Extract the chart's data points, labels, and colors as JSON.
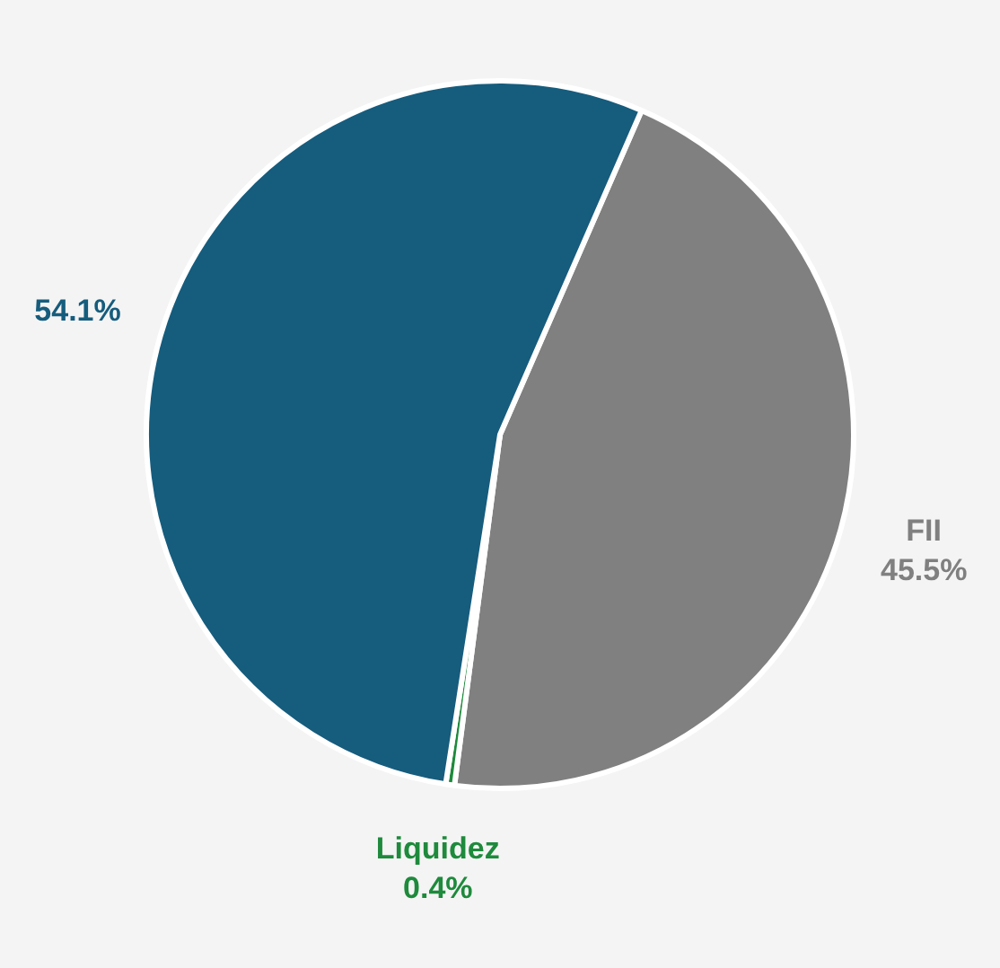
{
  "chart_data": {
    "type": "pie",
    "categories": [
      "FII",
      "Liquidez",
      null
    ],
    "values": [
      45.5,
      0.4,
      54.1
    ],
    "colors": [
      "#808080",
      "#1e8a3c",
      "#165c7d"
    ],
    "value_labels": [
      "45.5%",
      "0.4%",
      "54.1%"
    ]
  }
}
